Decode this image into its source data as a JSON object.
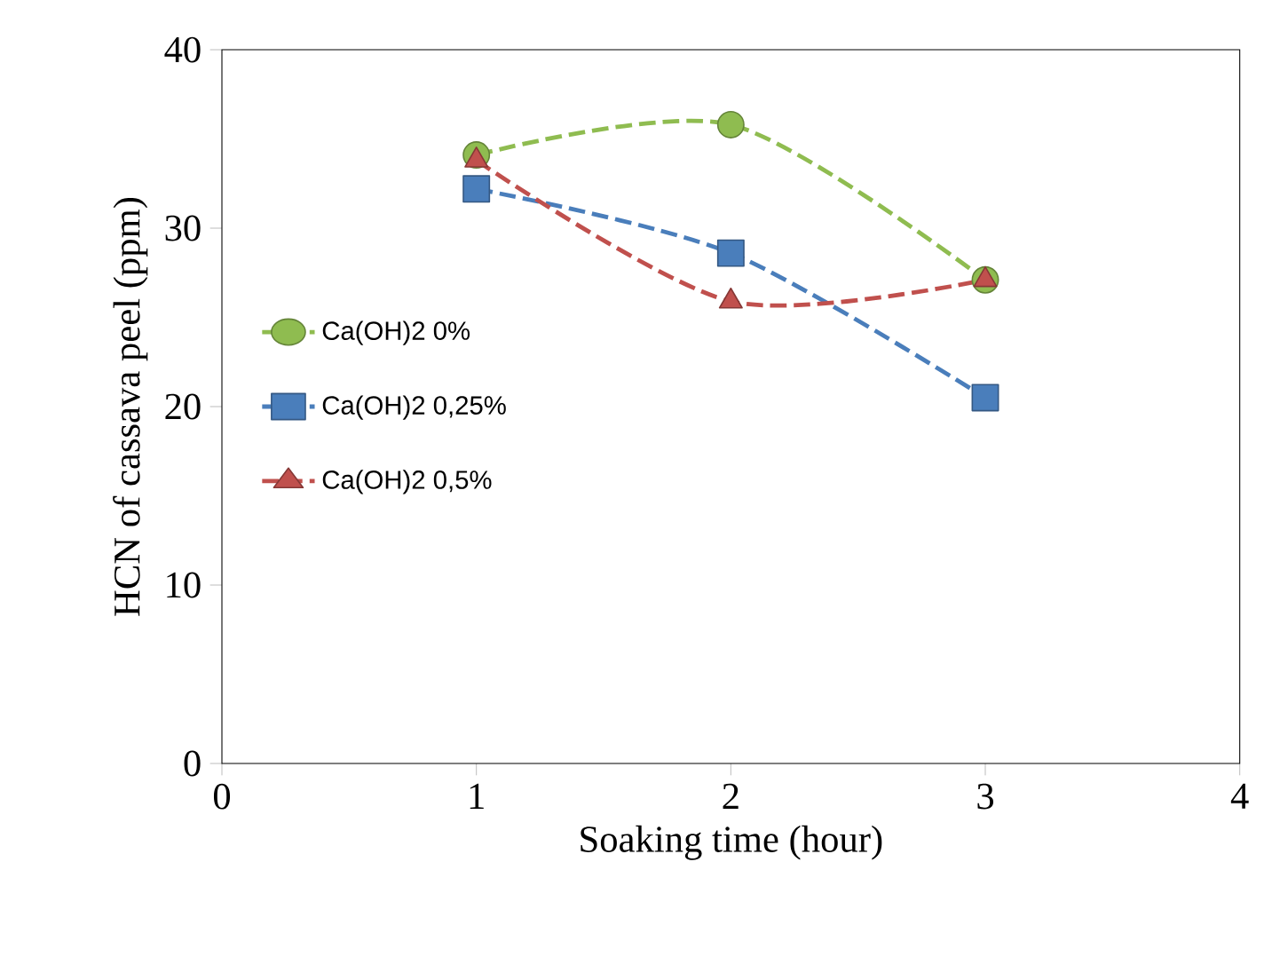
{
  "chart_data": {
    "type": "line",
    "xlabel": "Soaking time (hour)",
    "ylabel": "HCN   of cassava peel (ppm)",
    "x": [
      1,
      2,
      3
    ],
    "series": [
      {
        "name": "Ca(OH)2  0%",
        "color": "#8fbc50",
        "values": [
          34.1,
          35.8,
          27.1
        ],
        "marker": "circle",
        "line_style": "dashed"
      },
      {
        "name": "Ca(OH)2 0,25%",
        "color": "#4a7ebb",
        "values": [
          32.2,
          28.6,
          20.5
        ],
        "marker": "square",
        "line_style": "dashed"
      },
      {
        "name": "Ca(OH)2 0,5%",
        "color": "#c0504d",
        "values": [
          33.8,
          25.9,
          27.1
        ],
        "marker": "triangle",
        "line_style": "dashed"
      }
    ],
    "xlim": [
      0,
      4
    ],
    "xticks": [
      0,
      1,
      2,
      3,
      4
    ],
    "ylim": [
      0,
      40
    ],
    "yticks": [
      0,
      10,
      20,
      30,
      40
    ],
    "grid": false,
    "legend": "left"
  }
}
